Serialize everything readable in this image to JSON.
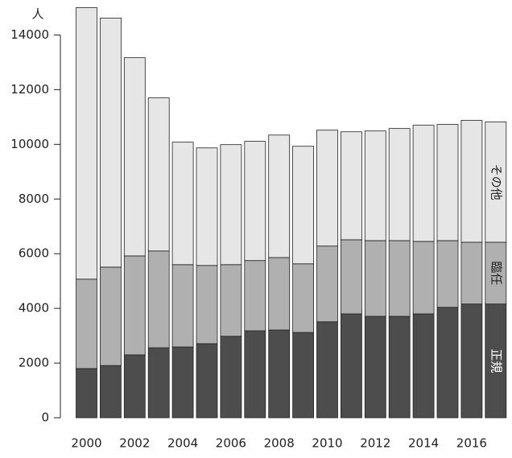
{
  "chart_data": {
    "type": "stacked_bar",
    "y_label": "人",
    "categories": [
      2000,
      null,
      2002,
      null,
      2004,
      null,
      2006,
      null,
      2008,
      null,
      2010,
      null,
      2012,
      null,
      2014,
      null,
      2016,
      null
    ],
    "series": [
      {
        "name": "正規",
        "color": "#4d4d4d",
        "label_color": "#ffffff",
        "values": [
          1800,
          1910,
          2300,
          2560,
          2590,
          2710,
          2980,
          3180,
          3210,
          3120,
          3510,
          3800,
          3710,
          3710,
          3800,
          4040,
          4160,
          4160
        ]
      },
      {
        "name": "臨任",
        "color": "#b0b0b0",
        "label_color": "#222222",
        "values": [
          3270,
          3600,
          3620,
          3540,
          3010,
          2860,
          2620,
          2570,
          2650,
          2510,
          2770,
          2710,
          2770,
          2770,
          2650,
          2440,
          2260,
          2260
        ]
      },
      {
        "name": "その他",
        "color": "#e6e6e6",
        "label_color": "#222222",
        "values": [
          9930,
          9110,
          7250,
          5600,
          4480,
          4300,
          4390,
          4360,
          4480,
          4300,
          4240,
          3950,
          4010,
          4100,
          4250,
          4250,
          4460,
          4400
        ]
      }
    ],
    "ylim": [
      0,
      15000
    ],
    "yticks": [
      0,
      2000,
      4000,
      6000,
      8000,
      10000,
      12000,
      14000
    ]
  }
}
